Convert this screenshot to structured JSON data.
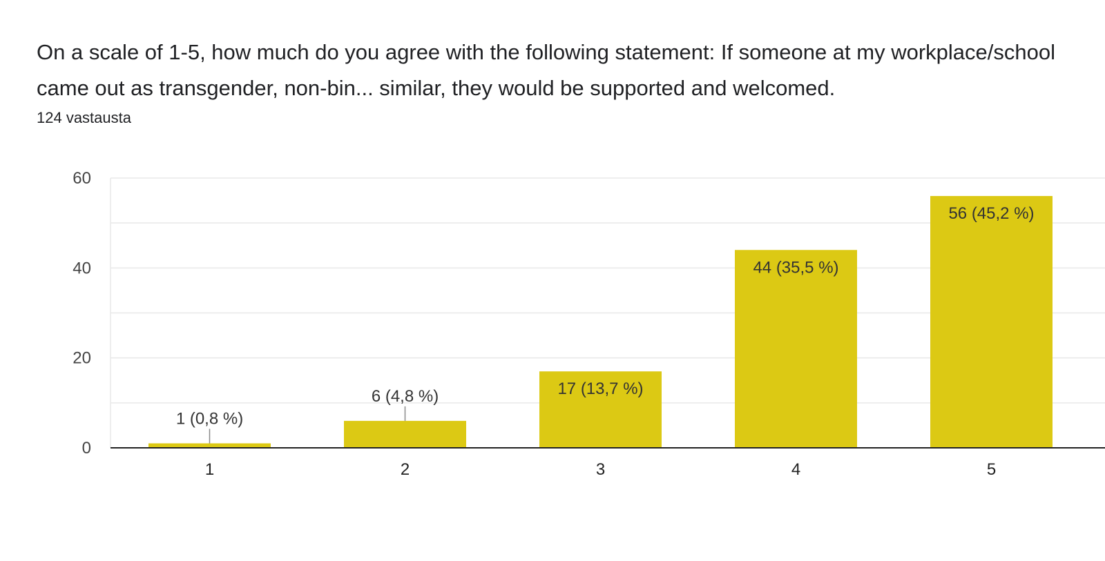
{
  "header": {
    "title": "On a scale of 1-5, how much do you agree with the following statement: If someone at my workplace/school came out as transgender, non-bin... similar, they would be supported and welcomed.",
    "responses": "124 vastausta"
  },
  "colors": {
    "bar": "#dcc914",
    "grid": "#e8e8e8",
    "axis": "#222222"
  },
  "chart_data": {
    "type": "bar",
    "categories": [
      "1",
      "2",
      "3",
      "4",
      "5"
    ],
    "values": [
      1,
      6,
      17,
      44,
      56
    ],
    "data_labels": [
      "1 (0,8 %)",
      "6 (4,8 %)",
      "17 (13,7 %)",
      "44 (35,5 %)",
      "56 (45,2 %)"
    ],
    "yticks": [
      0,
      20,
      40,
      60
    ],
    "ylim": [
      0,
      60
    ],
    "grid": true,
    "legend": "none"
  }
}
